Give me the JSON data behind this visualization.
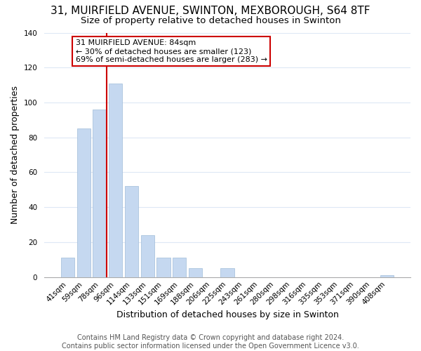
{
  "title": "31, MUIRFIELD AVENUE, SWINTON, MEXBOROUGH, S64 8TF",
  "subtitle": "Size of property relative to detached houses in Swinton",
  "xlabel": "Distribution of detached houses by size in Swinton",
  "ylabel": "Number of detached properties",
  "bar_labels": [
    "41sqm",
    "59sqm",
    "78sqm",
    "96sqm",
    "114sqm",
    "133sqm",
    "151sqm",
    "169sqm",
    "188sqm",
    "206sqm",
    "225sqm",
    "243sqm",
    "261sqm",
    "280sqm",
    "298sqm",
    "316sqm",
    "335sqm",
    "353sqm",
    "371sqm",
    "390sqm",
    "408sqm"
  ],
  "bar_values": [
    11,
    85,
    96,
    111,
    52,
    24,
    11,
    11,
    5,
    0,
    5,
    0,
    0,
    0,
    0,
    0,
    0,
    0,
    0,
    0,
    1
  ],
  "bar_color": "#c5d8f0",
  "bar_edge_color": "#a0bcd8",
  "ylim": [
    0,
    140
  ],
  "yticks": [
    0,
    20,
    40,
    60,
    80,
    100,
    120,
    140
  ],
  "vline_color": "#cc0000",
  "annotation_title": "31 MUIRFIELD AVENUE: 84sqm",
  "annotation_line1": "← 30% of detached houses are smaller (123)",
  "annotation_line2": "69% of semi-detached houses are larger (283) →",
  "annotation_box_color": "#ffffff",
  "annotation_box_edge": "#cc0000",
  "footer_line1": "Contains HM Land Registry data © Crown copyright and database right 2024.",
  "footer_line2": "Contains public sector information licensed under the Open Government Licence v3.0.",
  "background_color": "#ffffff",
  "grid_color": "#dde8f5",
  "title_fontsize": 11,
  "subtitle_fontsize": 9.5,
  "footer_fontsize": 7,
  "axis_label_fontsize": 9,
  "tick_fontsize": 7.5,
  "annot_fontsize": 8
}
